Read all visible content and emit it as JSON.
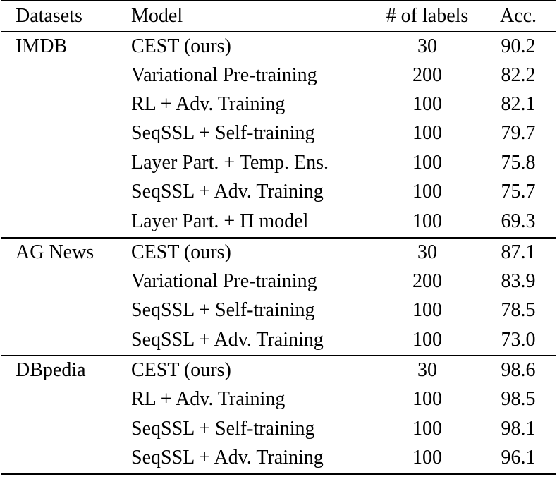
{
  "table": {
    "headers": {
      "dataset": "Datasets",
      "model": "Model",
      "labels": "# of labels",
      "acc": "Acc."
    },
    "groups": [
      {
        "dataset": "IMDB",
        "rows": [
          {
            "model": "CEST (ours)",
            "labels": "30",
            "acc": "90.2"
          },
          {
            "model": "Variational Pre-training",
            "labels": "200",
            "acc": "82.2"
          },
          {
            "model": "RL + Adv. Training",
            "labels": "100",
            "acc": "82.1"
          },
          {
            "model": "SeqSSL + Self-training",
            "labels": "100",
            "acc": "79.7"
          },
          {
            "model": "Layer Part. + Temp. Ens.",
            "labels": "100",
            "acc": "75.8"
          },
          {
            "model": "SeqSSL + Adv. Training",
            "labels": "100",
            "acc": "75.7"
          },
          {
            "model": "Layer Part. + Π model",
            "labels": "100",
            "acc": "69.3"
          }
        ]
      },
      {
        "dataset": "AG News",
        "rows": [
          {
            "model": "CEST (ours)",
            "labels": "30",
            "acc": "87.1"
          },
          {
            "model": "Variational Pre-training",
            "labels": "200",
            "acc": "83.9"
          },
          {
            "model": "SeqSSL + Self-training",
            "labels": "100",
            "acc": "78.5"
          },
          {
            "model": "SeqSSL + Adv. Training",
            "labels": "100",
            "acc": "73.0"
          }
        ]
      },
      {
        "dataset": "DBpedia",
        "rows": [
          {
            "model": "CEST (ours)",
            "labels": "30",
            "acc": "98.6"
          },
          {
            "model": "RL + Adv. Training",
            "labels": "100",
            "acc": "98.5"
          },
          {
            "model": "SeqSSL + Self-training",
            "labels": "100",
            "acc": "98.1"
          },
          {
            "model": "SeqSSL + Adv. Training",
            "labels": "100",
            "acc": "96.1"
          }
        ]
      }
    ]
  }
}
